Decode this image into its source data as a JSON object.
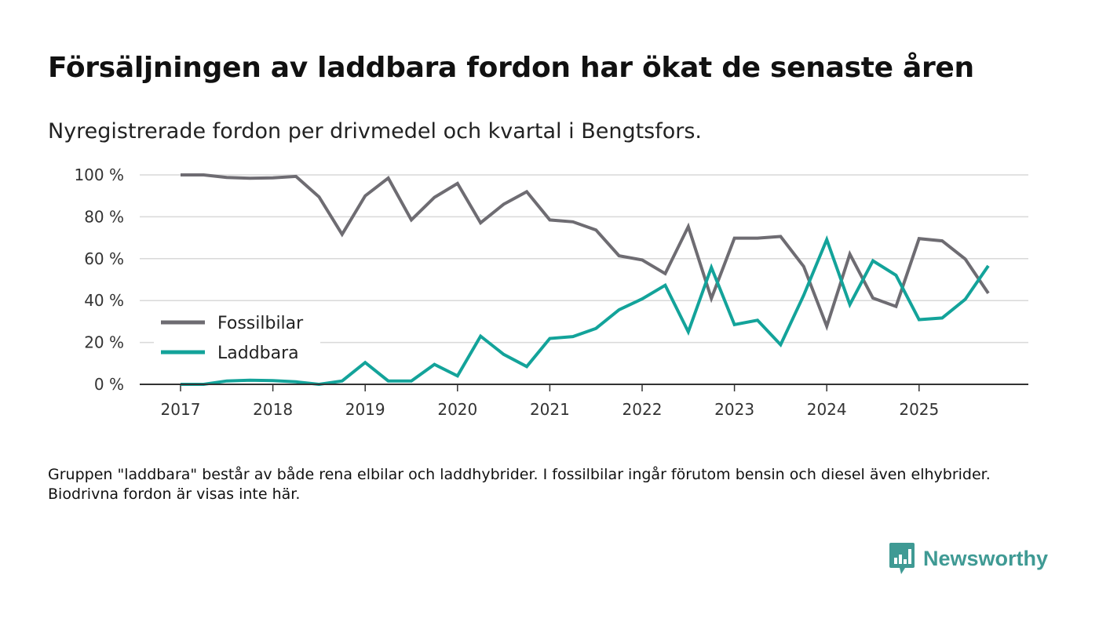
{
  "title": "Försäljningen av laddbara fordon har ökat de senaste åren",
  "subtitle": "Nyregistrerade fordon per drivmedel och kvartal i Bengtsfors.",
  "note": "Gruppen \"laddbara\" består av både rena elbilar och laddhybrider. I fossilbilar ingår förutom bensin och diesel även elhybrider. Biodrivna fordon är visas inte här.",
  "brand": {
    "name": "Newsworthy",
    "icon": "newsworthy-logo-icon",
    "color": "#3f9a94"
  },
  "chart_data": {
    "type": "line",
    "title": "Försäljningen av laddbara fordon har ökat de senaste åren",
    "xlabel": "",
    "ylabel": "",
    "ylim": [
      0,
      100
    ],
    "xlim": [
      2017,
      2026.17
    ],
    "grid": true,
    "legend_position": "middle-left",
    "x_tick_labels": [
      "2017",
      "2018",
      "2019",
      "2020",
      "2021",
      "2022",
      "2023",
      "2024",
      "2025"
    ],
    "y_tick_labels": [
      "0 %",
      "20 %",
      "40 %",
      "60 %",
      "80 %",
      "100 %"
    ],
    "y_tick_values": [
      0,
      20,
      40,
      60,
      80,
      100
    ],
    "x": [
      2017,
      2017.25,
      2017.5,
      2017.75,
      2018,
      2018.25,
      2018.5,
      2018.75,
      2019,
      2019.25,
      2019.5,
      2019.75,
      2020,
      2020.25,
      2020.5,
      2020.75,
      2021,
      2021.25,
      2021.5,
      2021.75,
      2022,
      2022.25,
      2022.5,
      2022.75,
      2023,
      2023.25,
      2023.5,
      2023.75,
      2024,
      2024.25,
      2024.5,
      2024.75,
      2025,
      2025.25,
      2025.5,
      2025.75
    ],
    "series": [
      {
        "name": "Fossilbilar",
        "color": "#6e6c72",
        "values": [
          100,
          100,
          98.8,
          98.4,
          98.6,
          99.3,
          89.5,
          71.6,
          90,
          98.5,
          78.5,
          89.3,
          95.9,
          77.1,
          86,
          92,
          78.5,
          77.6,
          73.7,
          61.4,
          59.4,
          52.9,
          75.3,
          41,
          69.8,
          69.8,
          70.6,
          56.3,
          27.7,
          62.2,
          41.2,
          37.2,
          69.6,
          68.5,
          59.8,
          43.5
        ]
      },
      {
        "name": "Laddbara",
        "color": "#13a39a",
        "values": [
          0,
          0,
          1.6,
          2,
          1.8,
          1.2,
          0,
          1.6,
          10.4,
          1.6,
          1.6,
          9.5,
          4,
          23,
          14.3,
          8.5,
          21.9,
          22.8,
          26.7,
          35.6,
          40.8,
          47.3,
          25.1,
          55.8,
          28.5,
          30.6,
          18.9,
          42.5,
          69.1,
          38.1,
          59,
          52.1,
          30.9,
          31.7,
          40.6,
          56.6
        ]
      }
    ]
  }
}
